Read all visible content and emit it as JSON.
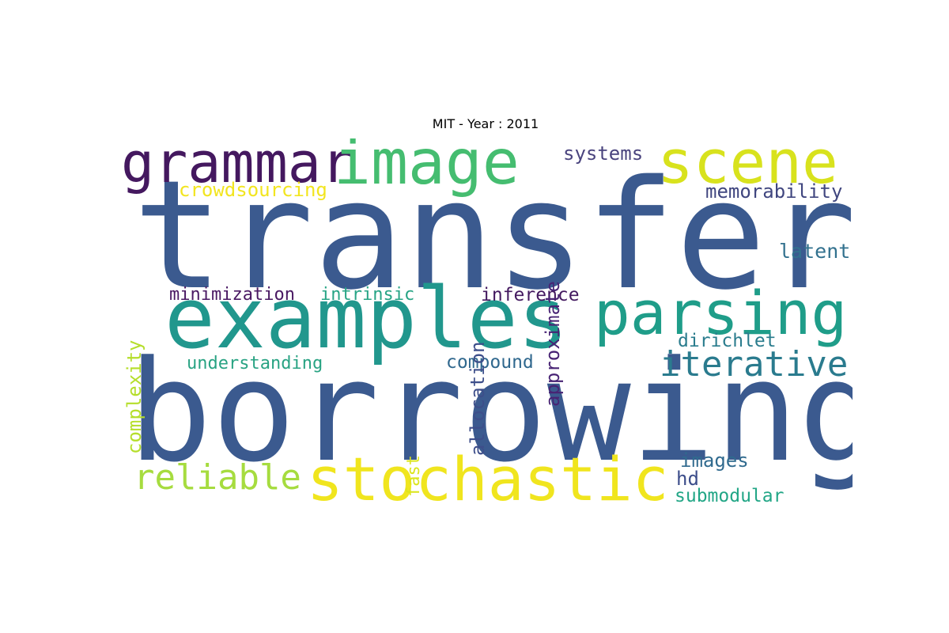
{
  "title": "MIT - Year : 2011",
  "words": {
    "transfer": "transfer",
    "borrowing": "borrowing",
    "examples": "examples",
    "grammar": "grammar",
    "image": "image",
    "scene": "scene",
    "parsing": "parsing",
    "stochastic": "stochastic",
    "iterative": "iterative",
    "reliable": "reliable",
    "crowdsourcing": "crowdsourcing",
    "systems": "systems",
    "memorability": "memorability",
    "latent": "latent",
    "minimization": "minimization",
    "intrinsic": "intrinsic",
    "inference": "inference",
    "dirichlet": "dirichlet",
    "understanding": "understanding",
    "compound": "compound",
    "images": "images",
    "hd": "hd",
    "submodular": "submodular",
    "complexity": "complexity",
    "allocation": "allocation",
    "approximate": "approximate",
    "fast": "fast"
  },
  "colors": {
    "background": "#ffffff",
    "title": "#000000",
    "transfer": "#3b5a8f",
    "borrowing": "#3b5a8f",
    "examples": "#21978d",
    "grammar": "#44185f",
    "image": "#45bd70",
    "scene": "#d8e21d",
    "parsing": "#1f9d89",
    "stochastic": "#f0e51e",
    "iterative": "#2a7b8e",
    "reliable": "#a6dc3f"
  }
}
